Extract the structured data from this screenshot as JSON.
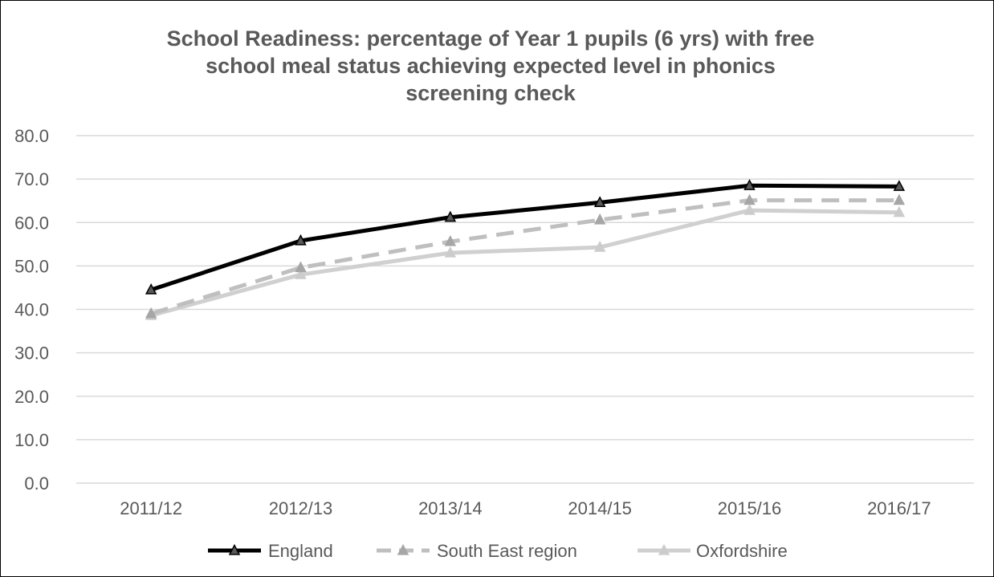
{
  "chart_data": {
    "type": "line",
    "title": [
      "School Readiness: percentage of Year 1 pupils (6 yrs) with free",
      "school meal status achieving expected level in phonics",
      "screening check"
    ],
    "categories": [
      "2011/12",
      "2012/13",
      "2013/14",
      "2014/15",
      "2015/16",
      "2016/17"
    ],
    "y_ticks": [
      "0.0",
      "10.0",
      "20.0",
      "30.0",
      "40.0",
      "50.0",
      "60.0",
      "70.0",
      "80.0"
    ],
    "ylim": [
      0,
      80
    ],
    "grid": true,
    "legend_position": "bottom",
    "series": [
      {
        "name": "England",
        "values": [
          44.5,
          55.8,
          61.2,
          64.6,
          68.5,
          68.3
        ],
        "color": "#000000",
        "marker_color": "#595959",
        "dash": "solid"
      },
      {
        "name": "South East region",
        "values": [
          39.0,
          49.6,
          55.6,
          60.6,
          65.1,
          65.1
        ],
        "color": "#bfbfbf",
        "marker_color": "#a6a6a6",
        "dash": "dashed"
      },
      {
        "name": "Oxfordshire",
        "values": [
          38.6,
          48.0,
          53.0,
          54.3,
          62.8,
          62.3
        ],
        "color": "#d0d0d0",
        "marker_color": "#cccccc",
        "dash": "solid"
      }
    ]
  }
}
